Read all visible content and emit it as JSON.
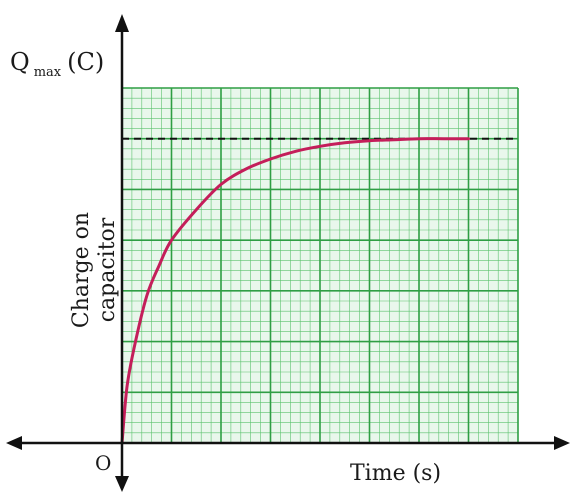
{
  "chart_data": {
    "type": "line",
    "title": "",
    "ylabel_top": "Q",
    "ylabel_sub": "max",
    "ylabel_unit": "(C)",
    "ylabel_side_line1": "Charge on",
    "ylabel_side_line2": "capacitor",
    "xlabel": "Time (s)",
    "origin_label": "O",
    "grid": true,
    "xlim": [
      0,
      8
    ],
    "ylim": [
      0,
      7
    ],
    "asymptote": 6,
    "series": [
      {
        "x": [
          0,
          0.1,
          0.25,
          0.5,
          0.75,
          1.0,
          1.5,
          2.0,
          2.5,
          3.0,
          3.5,
          4.0,
          4.5,
          5.0,
          5.5,
          6.0,
          6.5,
          7.0
        ],
        "y": [
          0,
          1.1,
          1.9,
          2.9,
          3.5,
          4.0,
          4.6,
          5.1,
          5.4,
          5.6,
          5.75,
          5.85,
          5.92,
          5.96,
          5.98,
          6.0,
          6.0,
          6.0
        ]
      }
    ],
    "colors": {
      "curve": "#c41e5a",
      "grid_major": "#2f9e44",
      "grid_minor": "#5cc26e",
      "grid_bg": "#e9f7ec",
      "asymptote": "#111111",
      "axis": "#111111"
    }
  }
}
